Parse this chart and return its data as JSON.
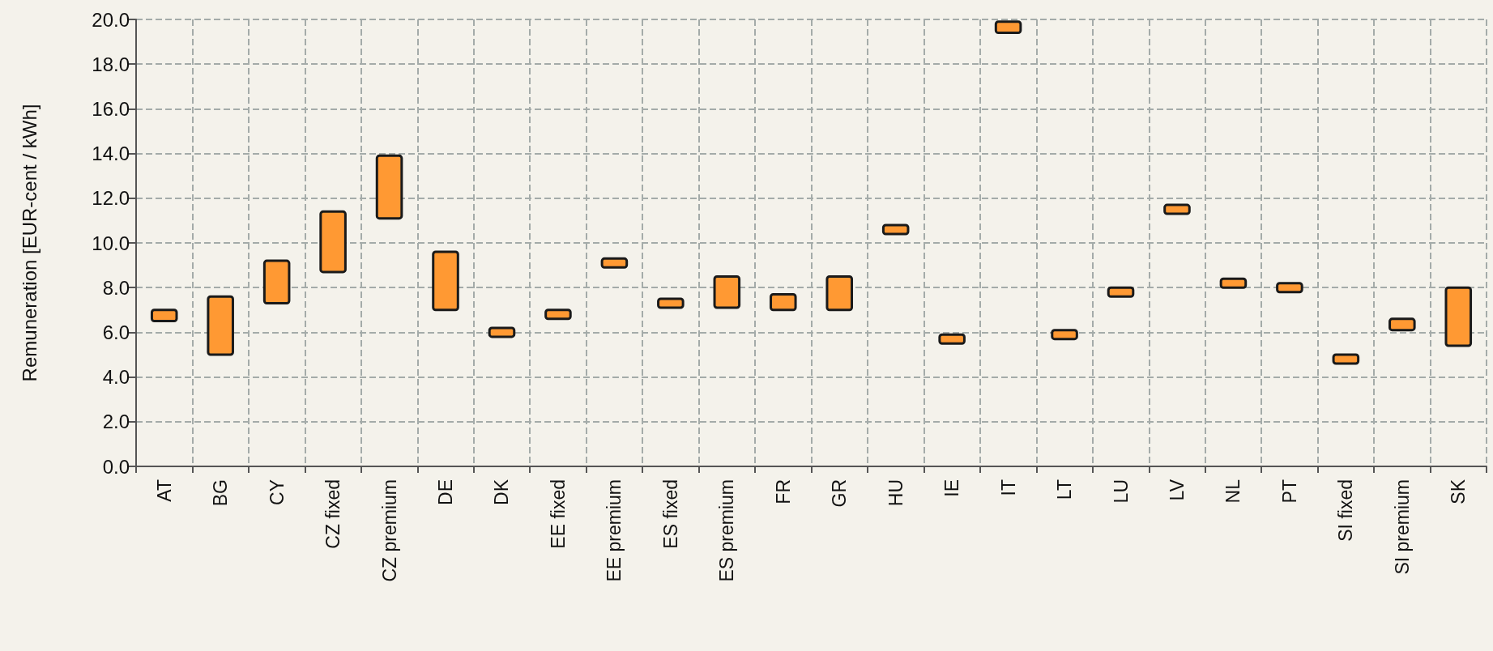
{
  "chart_data": {
    "type": "bar",
    "ylabel": "Remuneration [EUR-cent / kWh]",
    "categories": [
      "AT",
      "BG",
      "CY",
      "CZ fixed",
      "CZ premium",
      "DE",
      "DK",
      "EE fixed",
      "EE premium",
      "ES fixed",
      "ES premium",
      "FR",
      "GR",
      "HU",
      "IE",
      "IT",
      "LT",
      "LU",
      "LV",
      "NL",
      "PT",
      "SI fixed",
      "SI premium",
      "SK"
    ],
    "base": [
      6.5,
      5.0,
      7.3,
      8.7,
      11.1,
      7.0,
      5.8,
      6.6,
      8.9,
      7.1,
      7.1,
      7.0,
      7.0,
      10.4,
      5.5,
      19.4,
      5.7,
      7.6,
      11.3,
      8.0,
      7.8,
      4.6,
      6.1,
      5.4
    ],
    "values": [
      0.5,
      2.6,
      1.9,
      2.7,
      2.8,
      2.6,
      0.4,
      0.4,
      0.4,
      0.4,
      1.4,
      0.7,
      1.5,
      0.4,
      0.4,
      0.5,
      0.4,
      0.4,
      0.4,
      0.4,
      0.4,
      0.4,
      0.5,
      2.6
    ],
    "color": "#ff9933",
    "ylim": [
      0,
      20
    ],
    "yticks": [
      {
        "value": 0,
        "label": "0.0"
      },
      {
        "value": 2,
        "label": "2.0"
      },
      {
        "value": 4,
        "label": "4.0"
      },
      {
        "value": 6,
        "label": "6.0"
      },
      {
        "value": 8,
        "label": "8.0"
      },
      {
        "value": 10,
        "label": "10.0"
      },
      {
        "value": 12,
        "label": "12.0"
      },
      {
        "value": 14,
        "label": "14.0"
      },
      {
        "value": 16,
        "label": "16.0"
      },
      {
        "value": 18,
        "label": "18.0"
      },
      {
        "value": 20,
        "label": "20.0"
      }
    ],
    "grid": true
  }
}
